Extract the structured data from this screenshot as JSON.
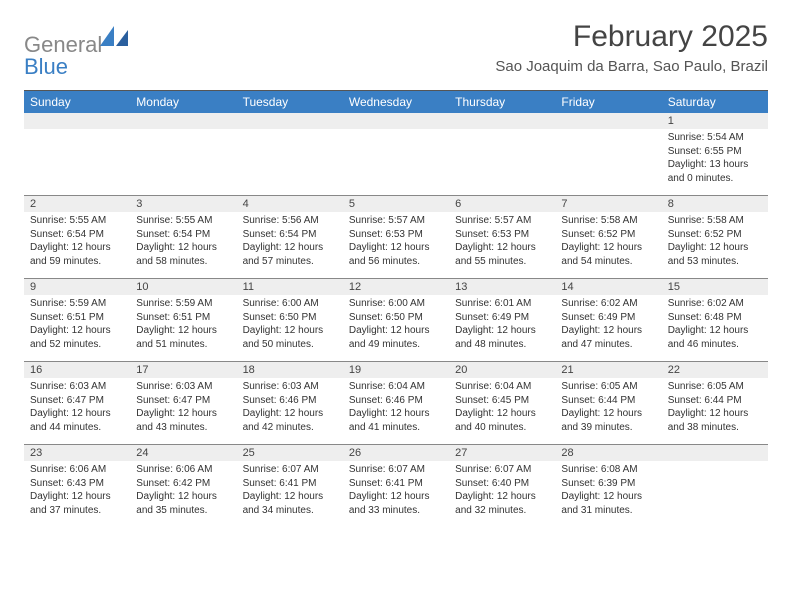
{
  "logo": {
    "textGrey": "General",
    "textBlue": "Blue"
  },
  "header": {
    "monthTitle": "February 2025",
    "location": "Sao Joaquim da Barra, Sao Paulo, Brazil"
  },
  "weekdays": [
    "Sunday",
    "Monday",
    "Tuesday",
    "Wednesday",
    "Thursday",
    "Friday",
    "Saturday"
  ],
  "colors": {
    "headerBar": "#3a7fc4",
    "dayBar": "#eeeeee",
    "rule": "#888888",
    "text": "#333333"
  },
  "weeks": [
    [
      {
        "n": "",
        "sr": "",
        "ss": "",
        "dl": ""
      },
      {
        "n": "",
        "sr": "",
        "ss": "",
        "dl": ""
      },
      {
        "n": "",
        "sr": "",
        "ss": "",
        "dl": ""
      },
      {
        "n": "",
        "sr": "",
        "ss": "",
        "dl": ""
      },
      {
        "n": "",
        "sr": "",
        "ss": "",
        "dl": ""
      },
      {
        "n": "",
        "sr": "",
        "ss": "",
        "dl": ""
      },
      {
        "n": "1",
        "sr": "5:54 AM",
        "ss": "6:55 PM",
        "dl": "13 hours and 0 minutes."
      }
    ],
    [
      {
        "n": "2",
        "sr": "5:55 AM",
        "ss": "6:54 PM",
        "dl": "12 hours and 59 minutes."
      },
      {
        "n": "3",
        "sr": "5:55 AM",
        "ss": "6:54 PM",
        "dl": "12 hours and 58 minutes."
      },
      {
        "n": "4",
        "sr": "5:56 AM",
        "ss": "6:54 PM",
        "dl": "12 hours and 57 minutes."
      },
      {
        "n": "5",
        "sr": "5:57 AM",
        "ss": "6:53 PM",
        "dl": "12 hours and 56 minutes."
      },
      {
        "n": "6",
        "sr": "5:57 AM",
        "ss": "6:53 PM",
        "dl": "12 hours and 55 minutes."
      },
      {
        "n": "7",
        "sr": "5:58 AM",
        "ss": "6:52 PM",
        "dl": "12 hours and 54 minutes."
      },
      {
        "n": "8",
        "sr": "5:58 AM",
        "ss": "6:52 PM",
        "dl": "12 hours and 53 minutes."
      }
    ],
    [
      {
        "n": "9",
        "sr": "5:59 AM",
        "ss": "6:51 PM",
        "dl": "12 hours and 52 minutes."
      },
      {
        "n": "10",
        "sr": "5:59 AM",
        "ss": "6:51 PM",
        "dl": "12 hours and 51 minutes."
      },
      {
        "n": "11",
        "sr": "6:00 AM",
        "ss": "6:50 PM",
        "dl": "12 hours and 50 minutes."
      },
      {
        "n": "12",
        "sr": "6:00 AM",
        "ss": "6:50 PM",
        "dl": "12 hours and 49 minutes."
      },
      {
        "n": "13",
        "sr": "6:01 AM",
        "ss": "6:49 PM",
        "dl": "12 hours and 48 minutes."
      },
      {
        "n": "14",
        "sr": "6:02 AM",
        "ss": "6:49 PM",
        "dl": "12 hours and 47 minutes."
      },
      {
        "n": "15",
        "sr": "6:02 AM",
        "ss": "6:48 PM",
        "dl": "12 hours and 46 minutes."
      }
    ],
    [
      {
        "n": "16",
        "sr": "6:03 AM",
        "ss": "6:47 PM",
        "dl": "12 hours and 44 minutes."
      },
      {
        "n": "17",
        "sr": "6:03 AM",
        "ss": "6:47 PM",
        "dl": "12 hours and 43 minutes."
      },
      {
        "n": "18",
        "sr": "6:03 AM",
        "ss": "6:46 PM",
        "dl": "12 hours and 42 minutes."
      },
      {
        "n": "19",
        "sr": "6:04 AM",
        "ss": "6:46 PM",
        "dl": "12 hours and 41 minutes."
      },
      {
        "n": "20",
        "sr": "6:04 AM",
        "ss": "6:45 PM",
        "dl": "12 hours and 40 minutes."
      },
      {
        "n": "21",
        "sr": "6:05 AM",
        "ss": "6:44 PM",
        "dl": "12 hours and 39 minutes."
      },
      {
        "n": "22",
        "sr": "6:05 AM",
        "ss": "6:44 PM",
        "dl": "12 hours and 38 minutes."
      }
    ],
    [
      {
        "n": "23",
        "sr": "6:06 AM",
        "ss": "6:43 PM",
        "dl": "12 hours and 37 minutes."
      },
      {
        "n": "24",
        "sr": "6:06 AM",
        "ss": "6:42 PM",
        "dl": "12 hours and 35 minutes."
      },
      {
        "n": "25",
        "sr": "6:07 AM",
        "ss": "6:41 PM",
        "dl": "12 hours and 34 minutes."
      },
      {
        "n": "26",
        "sr": "6:07 AM",
        "ss": "6:41 PM",
        "dl": "12 hours and 33 minutes."
      },
      {
        "n": "27",
        "sr": "6:07 AM",
        "ss": "6:40 PM",
        "dl": "12 hours and 32 minutes."
      },
      {
        "n": "28",
        "sr": "6:08 AM",
        "ss": "6:39 PM",
        "dl": "12 hours and 31 minutes."
      },
      {
        "n": "",
        "sr": "",
        "ss": "",
        "dl": ""
      }
    ]
  ],
  "labels": {
    "sunrise": "Sunrise: ",
    "sunset": "Sunset: ",
    "daylight": "Daylight: "
  }
}
